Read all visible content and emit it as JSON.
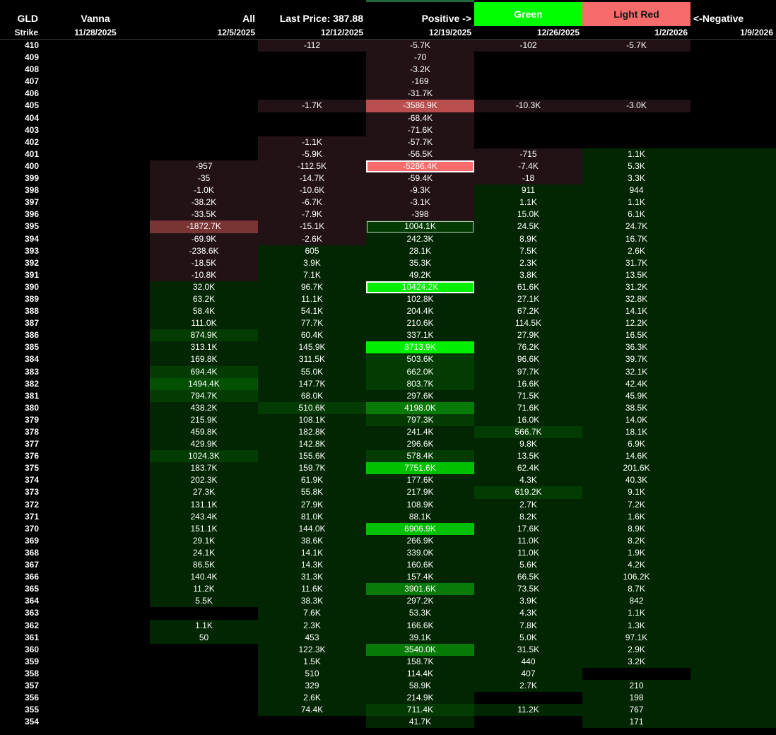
{
  "header": {
    "col0": {
      "top": "GLD",
      "bottom": "Strike"
    },
    "col1": {
      "top": "Vanna",
      "bottom": "11/28/2025"
    },
    "col2": {
      "top": "All",
      "bottom": "12/5/2025"
    },
    "col3": {
      "top": "Last Price: 387.88",
      "bottom": "12/12/2025"
    },
    "col4": {
      "top": "Positive ->",
      "bottom": "12/19/2025"
    },
    "col5": {
      "top": "Green",
      "bottom": "12/26/2025"
    },
    "col6": {
      "top": "Light Red",
      "bottom": "1/2/2026"
    },
    "col7": {
      "top": "<-Negative",
      "bottom": "1/9/2026"
    }
  },
  "colors": {
    "positive": "#00ff00",
    "negative": "#f86b6b",
    "background": "#000000"
  },
  "columns": [
    "11/28/2025",
    "12/5/2025",
    "12/12/2025",
    "12/19/2025",
    "12/26/2025",
    "1/2/2026",
    "1/9/2026"
  ],
  "rows": [
    {
      "strike": "410",
      "values": [
        "",
        "",
        "-112",
        "-5.7K",
        "-102",
        "-5.7K",
        ""
      ],
      "shade": [
        "n",
        "n",
        "r1",
        "r1",
        "r1",
        "r1",
        "n"
      ]
    },
    {
      "strike": "409",
      "values": [
        "",
        "",
        "",
        "-70",
        "",
        "",
        ""
      ],
      "shade": [
        "n",
        "n",
        "n",
        "r1",
        "n",
        "n",
        "n"
      ]
    },
    {
      "strike": "408",
      "values": [
        "",
        "",
        "",
        "-3.2K",
        "",
        "",
        ""
      ],
      "shade": [
        "n",
        "n",
        "n",
        "r1",
        "n",
        "n",
        "n"
      ]
    },
    {
      "strike": "407",
      "values": [
        "",
        "",
        "",
        "-169",
        "",
        "",
        ""
      ],
      "shade": [
        "n",
        "n",
        "n",
        "r1",
        "n",
        "n",
        "n"
      ]
    },
    {
      "strike": "406",
      "values": [
        "",
        "",
        "",
        "-31.7K",
        "",
        "",
        ""
      ],
      "shade": [
        "n",
        "n",
        "n",
        "r1",
        "n",
        "n",
        "n"
      ]
    },
    {
      "strike": "405",
      "values": [
        "",
        "",
        "-1.7K",
        "-3586.9K",
        "-10.3K",
        "-3.0K",
        ""
      ],
      "shade": [
        "n",
        "n",
        "r1",
        "r3",
        "r1",
        "r1",
        "n"
      ]
    },
    {
      "strike": "404",
      "values": [
        "",
        "",
        "",
        "-68.4K",
        "",
        "",
        ""
      ],
      "shade": [
        "n",
        "n",
        "n",
        "r1",
        "n",
        "n",
        "n"
      ]
    },
    {
      "strike": "403",
      "values": [
        "",
        "",
        "",
        "-71.6K",
        "",
        "",
        ""
      ],
      "shade": [
        "n",
        "n",
        "n",
        "r1",
        "n",
        "n",
        "n"
      ]
    },
    {
      "strike": "402",
      "values": [
        "",
        "",
        "-1.1K",
        "-57.7K",
        "",
        "",
        ""
      ],
      "shade": [
        "n",
        "n",
        "r1",
        "r1",
        "n",
        "n",
        "n"
      ]
    },
    {
      "strike": "401",
      "values": [
        "",
        "",
        "-5.9K",
        "-56.5K",
        "-715",
        "1.1K",
        ""
      ],
      "shade": [
        "n",
        "n",
        "r1",
        "r1",
        "r1",
        "g0",
        "g0"
      ]
    },
    {
      "strike": "400",
      "values": [
        "",
        "-957",
        "-112.5K",
        "-5286.4K",
        "-7.4K",
        "5.3K",
        ""
      ],
      "shade": [
        "n",
        "r1",
        "r1",
        "r4",
        "r1",
        "g0",
        "g0"
      ]
    },
    {
      "strike": "399",
      "values": [
        "",
        "-35",
        "-14.7K",
        "-59.4K",
        "-18",
        "3.3K",
        ""
      ],
      "shade": [
        "n",
        "r1",
        "r1",
        "r1",
        "r1",
        "g0",
        "g0"
      ]
    },
    {
      "strike": "398",
      "values": [
        "",
        "-1.0K",
        "-10.6K",
        "-9.3K",
        "911",
        "944",
        ""
      ],
      "shade": [
        "n",
        "r1",
        "r1",
        "r1",
        "g0",
        "g0",
        "g0"
      ]
    },
    {
      "strike": "397",
      "values": [
        "",
        "-38.2K",
        "-6.7K",
        "-3.1K",
        "1.1K",
        "1.1K",
        ""
      ],
      "shade": [
        "n",
        "r1",
        "r1",
        "r1",
        "g0",
        "g0",
        "g0"
      ]
    },
    {
      "strike": "396",
      "values": [
        "",
        "-33.5K",
        "-7.9K",
        "-398",
        "15.0K",
        "6.1K",
        ""
      ],
      "shade": [
        "n",
        "r1",
        "r1",
        "r1",
        "g0",
        "g0",
        "g0"
      ]
    },
    {
      "strike": "395",
      "values": [
        "",
        "-1872.7K",
        "-15.1K",
        "1004.1K",
        "24.5K",
        "24.7K",
        ""
      ],
      "shade": [
        "n",
        "r2",
        "r1",
        "g1",
        "g0",
        "g0",
        "g0"
      ]
    },
    {
      "strike": "394",
      "values": [
        "",
        "-69.9K",
        "-2.6K",
        "242.3K",
        "8.9K",
        "16.7K",
        ""
      ],
      "shade": [
        "n",
        "r1",
        "r1",
        "g0",
        "g0",
        "g0",
        "g0"
      ]
    },
    {
      "strike": "393",
      "values": [
        "",
        "-238.6K",
        "605",
        "28.1K",
        "7.5K",
        "2.6K",
        ""
      ],
      "shade": [
        "n",
        "r1",
        "g0",
        "g0",
        "g0",
        "g0",
        "g0"
      ]
    },
    {
      "strike": "392",
      "values": [
        "",
        "-18.5K",
        "3.9K",
        "35.3K",
        "2.3K",
        "31.7K",
        ""
      ],
      "shade": [
        "n",
        "r1",
        "g0",
        "g0",
        "g0",
        "g0",
        "g0"
      ]
    },
    {
      "strike": "391",
      "values": [
        "",
        "-10.8K",
        "7.1K",
        "49.2K",
        "3.8K",
        "13.5K",
        ""
      ],
      "shade": [
        "n",
        "r1",
        "g0",
        "g0",
        "g0",
        "g0",
        "g0"
      ]
    },
    {
      "strike": "390",
      "values": [
        "",
        "32.0K",
        "96.7K",
        "10424.2K",
        "61.6K",
        "31.2K",
        ""
      ],
      "shade": [
        "n",
        "g0",
        "g0",
        "g5",
        "g0",
        "g0",
        "g0"
      ]
    },
    {
      "strike": "389",
      "values": [
        "",
        "63.2K",
        "11.1K",
        "102.8K",
        "27.1K",
        "32.8K",
        ""
      ],
      "shade": [
        "n",
        "g0",
        "g0",
        "g0",
        "g0",
        "g0",
        "g0"
      ]
    },
    {
      "strike": "388",
      "values": [
        "",
        "58.4K",
        "54.1K",
        "204.4K",
        "67.2K",
        "14.1K",
        ""
      ],
      "shade": [
        "n",
        "g0",
        "g0",
        "g0",
        "g0",
        "g0",
        "g0"
      ]
    },
    {
      "strike": "387",
      "values": [
        "",
        "111.0K",
        "77.7K",
        "210.6K",
        "114.5K",
        "12.2K",
        ""
      ],
      "shade": [
        "n",
        "g0",
        "g0",
        "g0",
        "g0",
        "g0",
        "g0"
      ]
    },
    {
      "strike": "386",
      "values": [
        "",
        "874.9K",
        "60.4K",
        "337.1K",
        "27.9K",
        "16.5K",
        ""
      ],
      "shade": [
        "n",
        "g1",
        "g0",
        "g0",
        "g0",
        "g0",
        "g0"
      ]
    },
    {
      "strike": "385",
      "values": [
        "",
        "313.1K",
        "145.9K",
        "8713.9K",
        "76.2K",
        "36.3K",
        ""
      ],
      "shade": [
        "n",
        "g0",
        "g0",
        "g5",
        "g0",
        "g0",
        "g0"
      ]
    },
    {
      "strike": "384",
      "values": [
        "",
        "169.8K",
        "311.5K",
        "503.6K",
        "96.6K",
        "39.7K",
        ""
      ],
      "shade": [
        "n",
        "g0",
        "g0",
        "g1",
        "g0",
        "g0",
        "g0"
      ]
    },
    {
      "strike": "383",
      "values": [
        "",
        "694.4K",
        "55.0K",
        "662.0K",
        "97.7K",
        "32.1K",
        ""
      ],
      "shade": [
        "n",
        "g1",
        "g0",
        "g1",
        "g0",
        "g0",
        "g0"
      ]
    },
    {
      "strike": "382",
      "values": [
        "",
        "1494.4K",
        "147.7K",
        "803.7K",
        "16.6K",
        "42.4K",
        ""
      ],
      "shade": [
        "n",
        "g2",
        "g0",
        "g1",
        "g0",
        "g0",
        "g0"
      ]
    },
    {
      "strike": "381",
      "values": [
        "",
        "794.7K",
        "68.0K",
        "297.6K",
        "71.5K",
        "45.9K",
        ""
      ],
      "shade": [
        "n",
        "g1",
        "g0",
        "g0",
        "g0",
        "g0",
        "g0"
      ]
    },
    {
      "strike": "380",
      "values": [
        "",
        "438.2K",
        "510.6K",
        "4198.0K",
        "71.6K",
        "38.5K",
        ""
      ],
      "shade": [
        "n",
        "g0",
        "g1",
        "g3",
        "g0",
        "g0",
        "g0"
      ]
    },
    {
      "strike": "379",
      "values": [
        "",
        "215.9K",
        "108.1K",
        "797.3K",
        "16.0K",
        "14.0K",
        ""
      ],
      "shade": [
        "n",
        "g0",
        "g0",
        "g1",
        "g0",
        "g0",
        "g0"
      ]
    },
    {
      "strike": "378",
      "values": [
        "",
        "459.8K",
        "182.8K",
        "241.4K",
        "566.7K",
        "18.1K",
        ""
      ],
      "shade": [
        "n",
        "g0",
        "g0",
        "g0",
        "g1",
        "g0",
        "g0"
      ]
    },
    {
      "strike": "377",
      "values": [
        "",
        "429.9K",
        "142.8K",
        "296.6K",
        "9.8K",
        "6.9K",
        ""
      ],
      "shade": [
        "n",
        "g0",
        "g0",
        "g0",
        "g0",
        "g0",
        "g0"
      ]
    },
    {
      "strike": "376",
      "values": [
        "",
        "1024.3K",
        "155.6K",
        "578.4K",
        "13.5K",
        "14.6K",
        ""
      ],
      "shade": [
        "n",
        "g1",
        "g0",
        "g1",
        "g0",
        "g0",
        "g0"
      ]
    },
    {
      "strike": "375",
      "values": [
        "",
        "183.7K",
        "159.7K",
        "7751.6K",
        "62.4K",
        "201.6K",
        ""
      ],
      "shade": [
        "n",
        "g0",
        "g0",
        "g4",
        "g0",
        "g0",
        "g0"
      ]
    },
    {
      "strike": "374",
      "values": [
        "",
        "202.3K",
        "61.9K",
        "177.6K",
        "4.3K",
        "40.3K",
        ""
      ],
      "shade": [
        "n",
        "g0",
        "g0",
        "g0",
        "g0",
        "g0",
        "g0"
      ]
    },
    {
      "strike": "373",
      "values": [
        "",
        "27.3K",
        "55.8K",
        "217.9K",
        "619.2K",
        "9.1K",
        ""
      ],
      "shade": [
        "n",
        "g0",
        "g0",
        "g0",
        "g1",
        "g0",
        "g0"
      ]
    },
    {
      "strike": "372",
      "values": [
        "",
        "131.1K",
        "27.9K",
        "108.9K",
        "2.7K",
        "7.2K",
        ""
      ],
      "shade": [
        "n",
        "g0",
        "g0",
        "g0",
        "g0",
        "g0",
        "g0"
      ]
    },
    {
      "strike": "371",
      "values": [
        "",
        "243.4K",
        "81.0K",
        "88.1K",
        "8.2K",
        "1.6K",
        ""
      ],
      "shade": [
        "n",
        "g0",
        "g0",
        "g0",
        "g0",
        "g0",
        "g0"
      ]
    },
    {
      "strike": "370",
      "values": [
        "",
        "151.1K",
        "144.0K",
        "6906.9K",
        "17.6K",
        "8.9K",
        ""
      ],
      "shade": [
        "n",
        "g0",
        "g0",
        "g4",
        "g0",
        "g0",
        "g0"
      ]
    },
    {
      "strike": "369",
      "values": [
        "",
        "29.1K",
        "38.6K",
        "266.9K",
        "11.0K",
        "8.2K",
        ""
      ],
      "shade": [
        "n",
        "g0",
        "g0",
        "g0",
        "g0",
        "g0",
        "g0"
      ]
    },
    {
      "strike": "368",
      "values": [
        "",
        "24.1K",
        "14.1K",
        "339.0K",
        "11.0K",
        "1.9K",
        ""
      ],
      "shade": [
        "n",
        "g0",
        "g0",
        "g0",
        "g0",
        "g0",
        "g0"
      ]
    },
    {
      "strike": "367",
      "values": [
        "",
        "86.5K",
        "14.3K",
        "160.6K",
        "5.6K",
        "4.2K",
        ""
      ],
      "shade": [
        "n",
        "g0",
        "g0",
        "g0",
        "g0",
        "g0",
        "g0"
      ]
    },
    {
      "strike": "366",
      "values": [
        "",
        "140.4K",
        "31.3K",
        "157.4K",
        "66.5K",
        "106.2K",
        ""
      ],
      "shade": [
        "n",
        "g0",
        "g0",
        "g0",
        "g0",
        "g0",
        "g0"
      ]
    },
    {
      "strike": "365",
      "values": [
        "",
        "11.2K",
        "11.6K",
        "3901.6K",
        "73.5K",
        "8.7K",
        ""
      ],
      "shade": [
        "n",
        "g0",
        "g0",
        "g3",
        "g0",
        "g0",
        "g0"
      ]
    },
    {
      "strike": "364",
      "values": [
        "",
        "5.5K",
        "38.3K",
        "297.2K",
        "3.9K",
        "842",
        ""
      ],
      "shade": [
        "n",
        "g0",
        "g0",
        "g0",
        "g0",
        "g0",
        "g0"
      ]
    },
    {
      "strike": "363",
      "values": [
        "",
        "",
        "7.6K",
        "53.3K",
        "4.3K",
        "1.1K",
        ""
      ],
      "shade": [
        "n",
        "n",
        "g0",
        "g0",
        "g0",
        "g0",
        "g0"
      ]
    },
    {
      "strike": "362",
      "values": [
        "",
        "1.1K",
        "2.3K",
        "166.6K",
        "7.8K",
        "1.3K",
        ""
      ],
      "shade": [
        "n",
        "g0",
        "g0",
        "g0",
        "g0",
        "g0",
        "g0"
      ]
    },
    {
      "strike": "361",
      "values": [
        "",
        "50",
        "453",
        "39.1K",
        "5.0K",
        "97.1K",
        ""
      ],
      "shade": [
        "n",
        "g0",
        "g0",
        "g0",
        "g0",
        "g0",
        "g0"
      ]
    },
    {
      "strike": "360",
      "values": [
        "",
        "",
        "122.3K",
        "3540.0K",
        "31.5K",
        "2.9K",
        ""
      ],
      "shade": [
        "n",
        "n",
        "g0",
        "g3",
        "g0",
        "g0",
        "g0"
      ]
    },
    {
      "strike": "359",
      "values": [
        "",
        "",
        "1.5K",
        "158.7K",
        "440",
        "3.2K",
        ""
      ],
      "shade": [
        "n",
        "n",
        "g0",
        "g0",
        "g0",
        "g0",
        "g0"
      ]
    },
    {
      "strike": "358",
      "values": [
        "",
        "",
        "510",
        "114.4K",
        "407",
        "",
        ""
      ],
      "shade": [
        "n",
        "n",
        "g0",
        "g0",
        "g0",
        "n",
        "g0"
      ]
    },
    {
      "strike": "357",
      "values": [
        "",
        "",
        "329",
        "58.9K",
        "2.7K",
        "210",
        ""
      ],
      "shade": [
        "n",
        "n",
        "g0",
        "g0",
        "g0",
        "g0",
        "g0"
      ]
    },
    {
      "strike": "356",
      "values": [
        "",
        "",
        "2.6K",
        "214.9K",
        "",
        "198",
        ""
      ],
      "shade": [
        "n",
        "n",
        "g0",
        "g0",
        "n",
        "g0",
        "g0"
      ]
    },
    {
      "strike": "355",
      "values": [
        "",
        "",
        "74.4K",
        "711.4K",
        "11.2K",
        "767",
        ""
      ],
      "shade": [
        "n",
        "n",
        "g0",
        "g1",
        "g0",
        "g0",
        "g0"
      ]
    },
    {
      "strike": "354",
      "values": [
        "",
        "",
        "",
        "41.7K",
        "",
        "171",
        ""
      ],
      "shade": [
        "n",
        "n",
        "n",
        "g0",
        "n",
        "g0",
        "g0"
      ]
    }
  ]
}
